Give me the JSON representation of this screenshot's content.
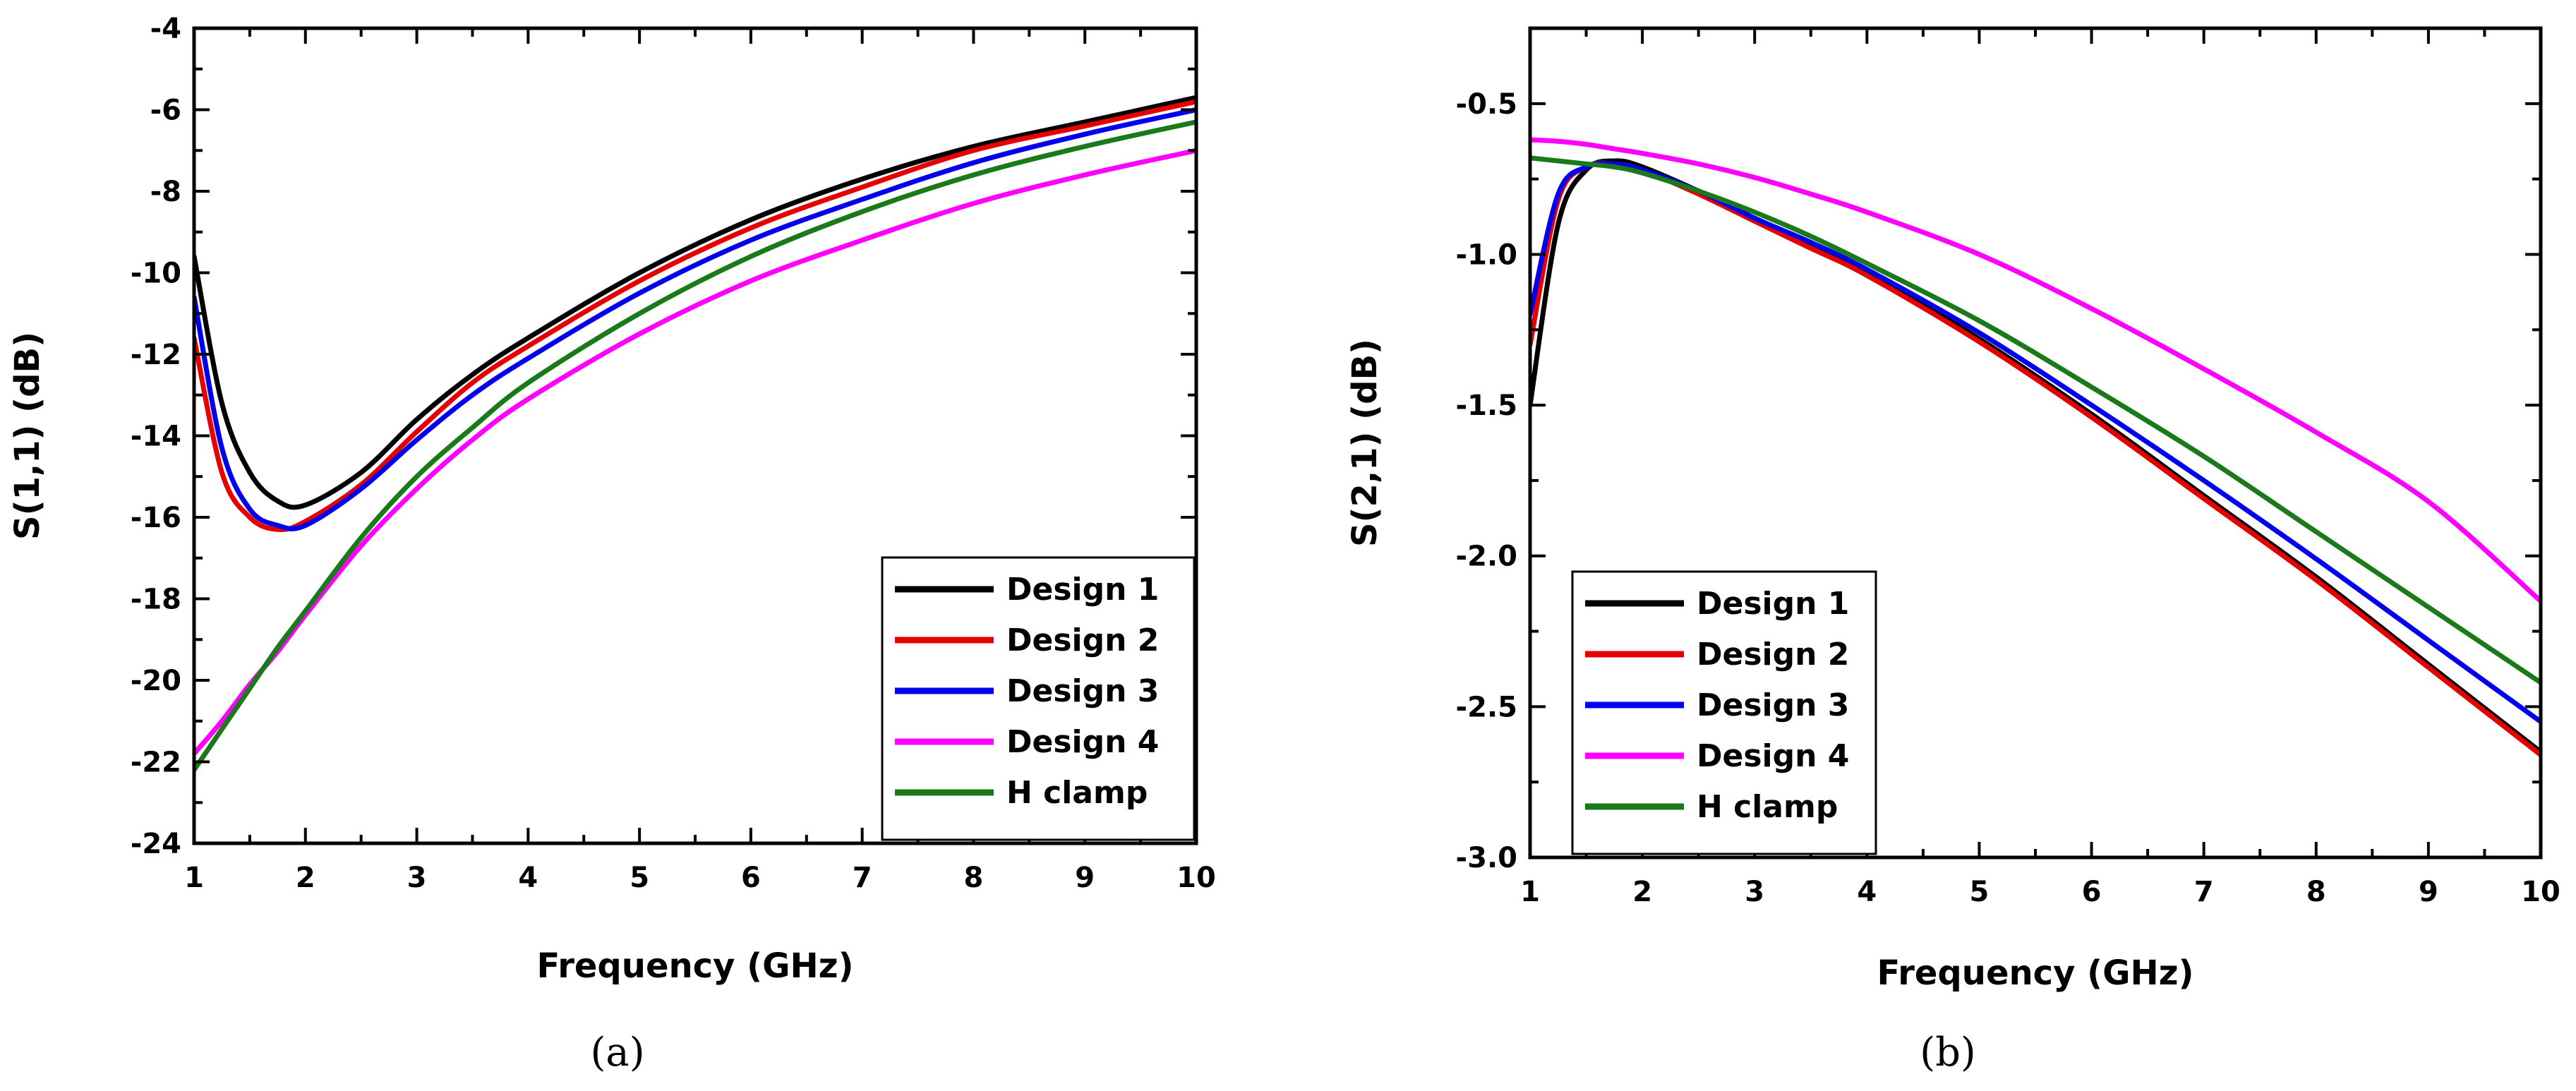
{
  "chart_data": [
    {
      "type": "line",
      "caption": "(a)",
      "title": "",
      "xlabel": "Frequency (GHz)",
      "ylabel": "S(1,1) (dB)",
      "xlim": [
        1,
        10
      ],
      "ylim": [
        -24,
        -4
      ],
      "xticks": [
        1,
        2,
        3,
        4,
        5,
        6,
        7,
        8,
        9,
        10
      ],
      "xtick_labels": [
        "1",
        "2",
        "3",
        "4",
        "5",
        "6",
        "7",
        "8",
        "9",
        "10"
      ],
      "yticks": [
        -24,
        -22,
        -20,
        -18,
        -16,
        -14,
        -12,
        -10,
        -8,
        -6,
        -4
      ],
      "ytick_labels": [
        "-24",
        "-22",
        "-20",
        "-18",
        "-16",
        "-14",
        "-12",
        "-10",
        "-8",
        "-6",
        "-4"
      ],
      "legend_position": "bottom-right",
      "x": [
        1,
        1.25,
        1.5,
        1.75,
        2,
        2.5,
        3,
        3.5,
        4,
        5,
        6,
        7,
        8,
        9,
        10
      ],
      "series": [
        {
          "name": "Design 1",
          "color": "#000000",
          "values": [
            -9.6,
            -13.2,
            -14.9,
            -15.6,
            -15.7,
            -14.9,
            -13.6,
            -12.5,
            -11.6,
            -10.0,
            -8.7,
            -7.7,
            -6.9,
            -6.3,
            -5.7
          ]
        },
        {
          "name": "Design 2",
          "color": "#e60000",
          "values": [
            -11.6,
            -14.9,
            -16.0,
            -16.3,
            -16.1,
            -15.2,
            -13.9,
            -12.7,
            -11.8,
            -10.2,
            -8.9,
            -7.9,
            -7.0,
            -6.4,
            -5.8
          ]
        },
        {
          "name": "Design 3",
          "color": "#0000ee",
          "values": [
            -10.6,
            -14.3,
            -15.8,
            -16.2,
            -16.2,
            -15.3,
            -14.1,
            -13.0,
            -12.1,
            -10.5,
            -9.2,
            -8.2,
            -7.3,
            -6.6,
            -6.0
          ]
        },
        {
          "name": "Design 4",
          "color": "#ff00ff",
          "values": [
            -21.8,
            -21.0,
            -20.1,
            -19.3,
            -18.4,
            -16.7,
            -15.3,
            -14.1,
            -13.1,
            -11.5,
            -10.2,
            -9.2,
            -8.3,
            -7.6,
            -7.0
          ]
        },
        {
          "name": "H clamp",
          "color": "#1a7a1a",
          "values": [
            -22.2,
            -21.2,
            -20.2,
            -19.2,
            -18.3,
            -16.5,
            -15.0,
            -13.8,
            -12.7,
            -11.0,
            -9.6,
            -8.5,
            -7.6,
            -6.9,
            -6.3
          ]
        }
      ]
    },
    {
      "type": "line",
      "caption": "(b)",
      "title": "",
      "xlabel": "Frequency (GHz)",
      "ylabel": "S(2,1) (dB)",
      "xlim": [
        1,
        10
      ],
      "ylim": [
        -3.0,
        -0.25
      ],
      "xticks": [
        1,
        2,
        3,
        4,
        5,
        6,
        7,
        8,
        9,
        10
      ],
      "xtick_labels": [
        "1",
        "2",
        "3",
        "4",
        "5",
        "6",
        "7",
        "8",
        "9",
        "10"
      ],
      "yticks": [
        -3.0,
        -2.5,
        -2.0,
        -1.5,
        -1.0,
        -0.5
      ],
      "ytick_labels": [
        "-3.0",
        "-2.5",
        "-2.0",
        "-1.5",
        "-1.0",
        "-0.5"
      ],
      "legend_position": "bottom-left",
      "x": [
        1,
        1.25,
        1.5,
        1.75,
        2,
        2.5,
        3,
        3.5,
        4,
        5,
        6,
        7,
        8,
        9,
        10
      ],
      "series": [
        {
          "name": "Design 1",
          "color": "#000000",
          "values": [
            -1.5,
            -0.9,
            -0.72,
            -0.69,
            -0.71,
            -0.79,
            -0.88,
            -0.97,
            -1.06,
            -1.28,
            -1.53,
            -1.8,
            -2.07,
            -2.36,
            -2.65
          ]
        },
        {
          "name": "Design 2",
          "color": "#e60000",
          "values": [
            -1.3,
            -0.82,
            -0.71,
            -0.7,
            -0.72,
            -0.8,
            -0.89,
            -0.98,
            -1.07,
            -1.29,
            -1.54,
            -1.81,
            -2.08,
            -2.37,
            -2.66
          ]
        },
        {
          "name": "Design 3",
          "color": "#0000ee",
          "values": [
            -1.2,
            -0.8,
            -0.71,
            -0.7,
            -0.72,
            -0.79,
            -0.88,
            -0.96,
            -1.05,
            -1.26,
            -1.5,
            -1.75,
            -2.01,
            -2.28,
            -2.55
          ]
        },
        {
          "name": "Design 4",
          "color": "#ff00ff",
          "values": [
            -0.62,
            -0.625,
            -0.635,
            -0.65,
            -0.665,
            -0.7,
            -0.745,
            -0.8,
            -0.86,
            -1.0,
            -1.18,
            -1.38,
            -1.59,
            -1.82,
            -2.15
          ]
        },
        {
          "name": "H clamp",
          "color": "#1a7a1a",
          "values": [
            -0.68,
            -0.69,
            -0.7,
            -0.71,
            -0.73,
            -0.79,
            -0.86,
            -0.94,
            -1.03,
            -1.22,
            -1.44,
            -1.67,
            -1.92,
            -2.17,
            -2.42
          ]
        }
      ]
    }
  ]
}
